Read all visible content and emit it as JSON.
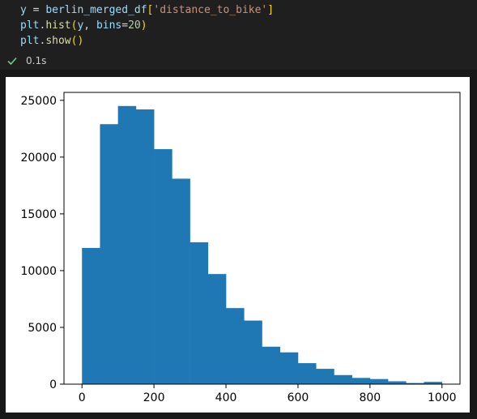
{
  "code": {
    "lines": [
      [
        {
          "t": "y",
          "c": "var"
        },
        {
          "t": " = ",
          "c": "op"
        },
        {
          "t": "berlin_merged_df",
          "c": "var"
        },
        {
          "t": "[",
          "c": "punc"
        },
        {
          "t": "'distance_to_bike'",
          "c": "str"
        },
        {
          "t": "]",
          "c": "punc"
        }
      ],
      [
        {
          "t": "plt",
          "c": "var"
        },
        {
          "t": ".",
          "c": "op"
        },
        {
          "t": "hist",
          "c": "fn"
        },
        {
          "t": "(",
          "c": "punc"
        },
        {
          "t": "y",
          "c": "var"
        },
        {
          "t": ", ",
          "c": "op"
        },
        {
          "t": "bins",
          "c": "var"
        },
        {
          "t": "=",
          "c": "op"
        },
        {
          "t": "20",
          "c": "num"
        },
        {
          "t": ")",
          "c": "punc"
        }
      ],
      [
        {
          "t": "plt",
          "c": "var"
        },
        {
          "t": ".",
          "c": "op"
        },
        {
          "t": "show",
          "c": "fn"
        },
        {
          "t": "()",
          "c": "punc"
        }
      ]
    ]
  },
  "status": {
    "icon": "check-icon",
    "time": "0.1s",
    "color": "#73c991"
  },
  "chart_data": {
    "type": "bar",
    "bar_color": "#1f77b4",
    "bin_edges": [
      0,
      50,
      100,
      150,
      200,
      250,
      300,
      350,
      400,
      450,
      500,
      550,
      600,
      650,
      700,
      750,
      800,
      850,
      900,
      950,
      1000
    ],
    "values": [
      12000,
      22900,
      24500,
      24200,
      20700,
      18100,
      12500,
      9700,
      6700,
      5600,
      3300,
      2800,
      1850,
      1350,
      800,
      550,
      450,
      250,
      100,
      200
    ],
    "xlim": [
      -50,
      1050
    ],
    "ylim": [
      0,
      25700
    ],
    "x_ticks": [
      0,
      200,
      400,
      600,
      800,
      1000
    ],
    "x_tick_labels": [
      "0",
      "200",
      "400",
      "600",
      "800",
      "1000"
    ],
    "y_ticks": [
      0,
      5000,
      10000,
      15000,
      20000,
      25000
    ],
    "y_tick_labels": [
      "0",
      "5000",
      "10000",
      "15000",
      "20000",
      "25000"
    ],
    "grid": false,
    "title": "",
    "xlabel": "",
    "ylabel": ""
  }
}
